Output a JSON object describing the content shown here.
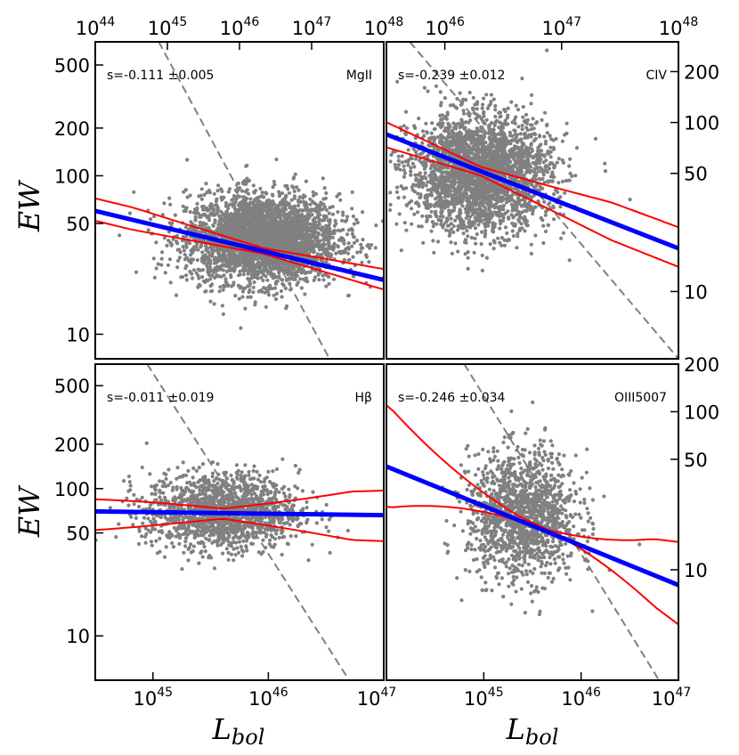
{
  "chart_data": [
    {
      "type": "scatter",
      "panel": "top-left",
      "line_label": "MgII",
      "slope_text": "s=-0.111",
      "slope_err_text": "±0.005",
      "x_bottom_range_exp": [
        44.5,
        47.0
      ],
      "x_top_range_exp": [
        44,
        48
      ],
      "x_top_tick_exps": [
        "44",
        "45",
        "46",
        "47",
        "48"
      ],
      "y_range": [
        7,
        700
      ],
      "y_ticks": [
        10,
        50,
        100,
        200,
        500
      ],
      "fit_line": {
        "from": [
          44.5,
          60
        ],
        "to": [
          47.0,
          22
        ]
      },
      "upper_band": {
        "from": [
          44.5,
          72
        ],
        "to": [
          47.0,
          26
        ]
      },
      "lower_band": {
        "from": [
          44.5,
          52
        ],
        "to": [
          47.0,
          19
        ]
      },
      "dashed_line": {
        "from": [
          45.05,
          700
        ],
        "to": [
          46.53,
          7
        ]
      },
      "scatter": {
        "center": [
          45.95,
          40
        ],
        "spread_x": 0.33,
        "spread_logy": 0.14,
        "count": 3200
      }
    },
    {
      "type": "scatter",
      "panel": "top-right",
      "line_label": "CIV",
      "slope_text": "s=-0.239",
      "slope_err_text": "±0.012",
      "x_bottom_range_exp": [
        44.5,
        47.0
      ],
      "x_top_range_exp": [
        45.5,
        48.0
      ],
      "x_top_tick_exps": [
        "46",
        "47",
        "48"
      ],
      "y_range": [
        4,
        300
      ],
      "y_ticks": [
        10,
        50,
        100,
        200
      ],
      "fit_line": {
        "from": [
          44.5,
          85
        ],
        "to": [
          47.0,
          18
        ]
      },
      "upper_band": {
        "from": [
          44.5,
          105
        ],
        "to": [
          47.0,
          24
        ]
      },
      "lower_band": {
        "from": [
          44.5,
          68
        ],
        "to": [
          47.0,
          14
        ]
      },
      "dashed_line": {
        "from": [
          44.7,
          300
        ],
        "to": [
          47.0,
          4
        ]
      },
      "scatter": {
        "center": [
          45.3,
          50
        ],
        "spread_x": 0.3,
        "spread_logy": 0.17,
        "count": 2800
      }
    },
    {
      "type": "scatter",
      "panel": "bottom-left",
      "line_label": "Hβ",
      "slope_text": "s=-0.011",
      "slope_err_text": "±0.019",
      "x_bottom_range_exp": [
        44.5,
        47.0
      ],
      "x_bottom_tick_exps": [
        "45",
        "46",
        "47"
      ],
      "y_range": [
        5,
        700
      ],
      "y_ticks": [
        10,
        50,
        100,
        200,
        500
      ],
      "fit_line": {
        "from": [
          44.5,
          70
        ],
        "to": [
          47.0,
          66
        ]
      },
      "upper_band": {
        "from": [
          44.5,
          85
        ],
        "to": [
          47.0,
          97
        ]
      },
      "lower_band": {
        "from": [
          44.5,
          52
        ],
        "to": [
          47.0,
          44
        ]
      },
      "dashed_line": {
        "from": [
          44.95,
          700
        ],
        "to": [
          46.7,
          5
        ]
      },
      "scatter": {
        "center": [
          45.6,
          70
        ],
        "spread_x": 0.33,
        "spread_logy": 0.13,
        "count": 1500
      }
    },
    {
      "type": "scatter",
      "panel": "bottom-right",
      "line_label": "OIII5007",
      "slope_text": "s=-0.246",
      "slope_err_text": "±0.034",
      "x_bottom_range_exp": [
        44.0,
        47.0
      ],
      "x_bottom_tick_exps": [
        "45",
        "46",
        "47"
      ],
      "y_range": [
        2,
        200
      ],
      "y_ticks": [
        10,
        50,
        100,
        200
      ],
      "fit_line": {
        "from": [
          44.0,
          45
        ],
        "to": [
          47.0,
          8
        ]
      },
      "upper_band": {
        "from": [
          44.0,
          110
        ],
        "to": [
          47.0,
          4.5
        ]
      },
      "lower_band": {
        "from": [
          44.0,
          25
        ],
        "to": [
          47.0,
          15
        ]
      },
      "dashed_line": {
        "from": [
          44.8,
          200
        ],
        "to": [
          46.8,
          2
        ]
      },
      "scatter": {
        "center": [
          45.4,
          22
        ],
        "spread_x": 0.28,
        "spread_logy": 0.2,
        "count": 1400
      }
    }
  ],
  "axes": {
    "ylabel": "EW",
    "xlabel_main": "L",
    "xlabel_sub": "bol",
    "tick_base": "10"
  },
  "colors": {
    "scatter": "#808080",
    "fit": "#0000ff",
    "band": "#ff0000",
    "dashed": "#808080"
  }
}
